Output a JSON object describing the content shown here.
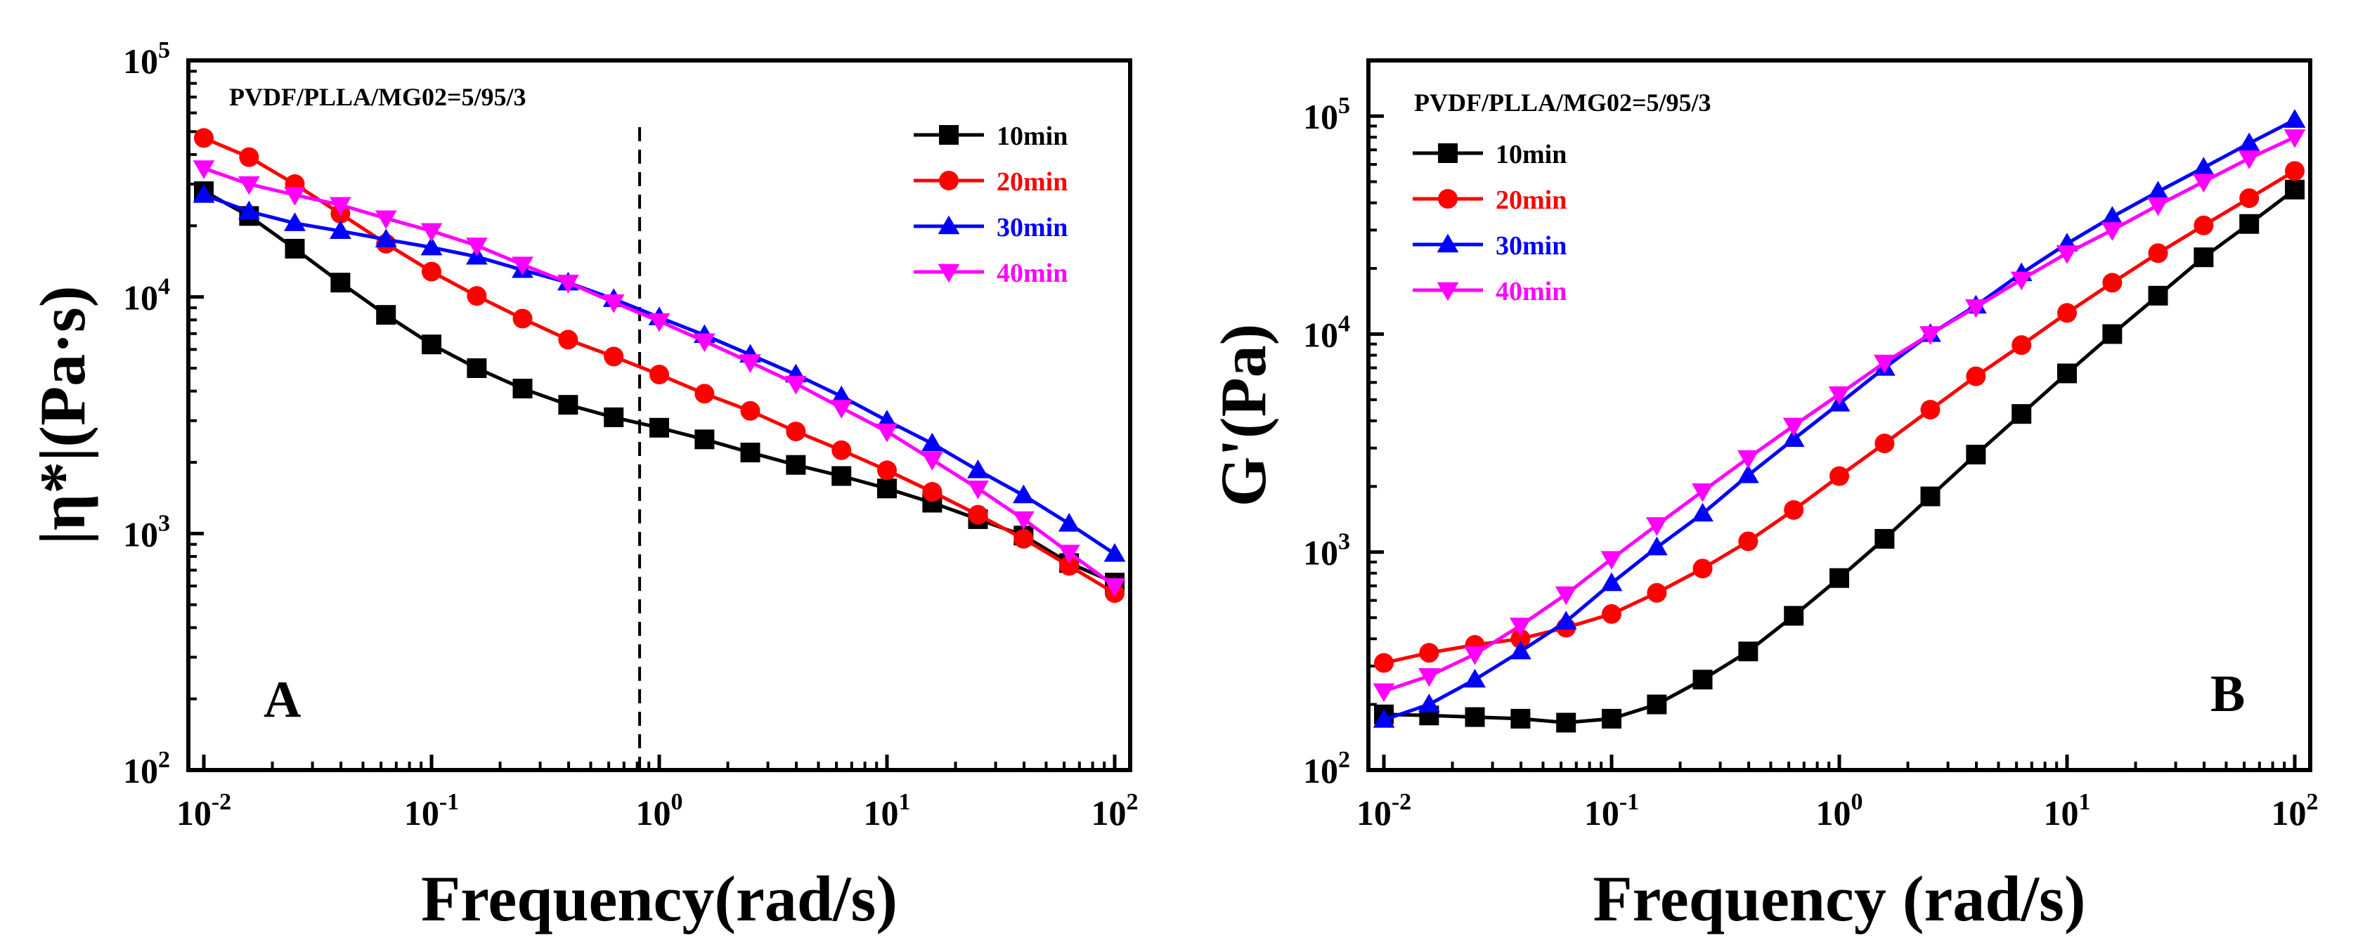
{
  "chart_data": [
    {
      "type": "line",
      "panel_label": "A",
      "annotation": "PVDF/PLLA/MG02=5/95/3",
      "xlabel": "Frequency(rad/s)",
      "ylabel": "|η*|(Pa·s)",
      "xscale": "log",
      "yscale": "log",
      "xlim": [
        0.01,
        100
      ],
      "ylim": [
        100,
        100000
      ],
      "x_ticks": [
        {
          "value": 0.01,
          "base": "10",
          "exp": "-2"
        },
        {
          "value": 0.1,
          "base": "10",
          "exp": "-1"
        },
        {
          "value": 1,
          "base": "10",
          "exp": "0"
        },
        {
          "value": 10,
          "base": "10",
          "exp": "1"
        },
        {
          "value": 100,
          "base": "10",
          "exp": "2"
        }
      ],
      "y_ticks": [
        {
          "value": 100,
          "base": "10",
          "exp": "2"
        },
        {
          "value": 1000,
          "base": "10",
          "exp": "3"
        },
        {
          "value": 10000,
          "base": "10",
          "exp": "4"
        },
        {
          "value": 100000,
          "base": "10",
          "exp": "5"
        }
      ],
      "vline_x": 0.82,
      "legend_position": "top-right",
      "x": [
        0.01,
        0.0158,
        0.0251,
        0.0398,
        0.0631,
        0.1,
        0.158,
        0.251,
        0.398,
        0.631,
        1,
        1.58,
        2.51,
        3.98,
        6.31,
        10,
        15.8,
        25.1,
        39.8,
        63.1,
        100
      ],
      "series": [
        {
          "name": "10min",
          "color": "#000000",
          "marker": "square",
          "values": [
            28000,
            22000,
            16000,
            11500,
            8400,
            6300,
            5000,
            4100,
            3500,
            3100,
            2800,
            2500,
            2200,
            1950,
            1750,
            1550,
            1350,
            1150,
            980,
            750,
            620
          ]
        },
        {
          "name": "20min",
          "color": "#ff0000",
          "marker": "circle",
          "values": [
            47000,
            39000,
            30000,
            22500,
            16800,
            12800,
            10100,
            8100,
            6600,
            5600,
            4700,
            3900,
            3300,
            2700,
            2250,
            1850,
            1500,
            1200,
            950,
            730,
            560
          ]
        },
        {
          "name": "30min",
          "color": "#0000ff",
          "marker": "triangle-up",
          "values": [
            27000,
            23000,
            20500,
            19000,
            17500,
            16200,
            14800,
            13000,
            11500,
            9800,
            8200,
            6900,
            5700,
            4700,
            3800,
            3000,
            2400,
            1850,
            1450,
            1100,
            820
          ]
        },
        {
          "name": "40min",
          "color": "#ff00ff",
          "marker": "triangle-down",
          "values": [
            35000,
            30000,
            27000,
            24500,
            21500,
            19000,
            16500,
            13700,
            11500,
            9500,
            7900,
            6500,
            5300,
            4300,
            3400,
            2700,
            2050,
            1550,
            1150,
            830,
            600
          ]
        }
      ]
    },
    {
      "type": "line",
      "panel_label": "B",
      "annotation": "PVDF/PLLA/MG02=5/95/3",
      "xlabel": "Frequency (rad/s)",
      "ylabel": "G'(Pa)",
      "xscale": "log",
      "yscale": "log",
      "xlim": [
        0.01,
        100
      ],
      "ylim": [
        100,
        180000
      ],
      "x_ticks": [
        {
          "value": 0.01,
          "base": "10",
          "exp": "-2"
        },
        {
          "value": 0.1,
          "base": "10",
          "exp": "-1"
        },
        {
          "value": 1,
          "base": "10",
          "exp": "0"
        },
        {
          "value": 10,
          "base": "10",
          "exp": "1"
        },
        {
          "value": 100,
          "base": "10",
          "exp": "2"
        }
      ],
      "y_ticks": [
        {
          "value": 100,
          "base": "10",
          "exp": "2"
        },
        {
          "value": 1000,
          "base": "10",
          "exp": "3"
        },
        {
          "value": 10000,
          "base": "10",
          "exp": "4"
        },
        {
          "value": 100000,
          "base": "10",
          "exp": "5"
        }
      ],
      "legend_position": "top-left",
      "x": [
        0.01,
        0.0158,
        0.0251,
        0.0398,
        0.0631,
        0.1,
        0.158,
        0.251,
        0.398,
        0.631,
        1,
        1.58,
        2.51,
        3.98,
        6.31,
        10,
        15.8,
        25.1,
        39.8,
        63.1,
        100
      ],
      "series": [
        {
          "name": "10min",
          "color": "#000000",
          "marker": "square",
          "values": [
            180,
            178,
            175,
            172,
            165,
            172,
            200,
            260,
            350,
            510,
            760,
            1150,
            1800,
            2800,
            4300,
            6600,
            10000,
            15000,
            22500,
            32000,
            46000
          ]
        },
        {
          "name": "20min",
          "color": "#ff0000",
          "marker": "circle",
          "values": [
            310,
            345,
            375,
            400,
            450,
            520,
            650,
            840,
            1120,
            1560,
            2230,
            3150,
            4500,
            6400,
            8900,
            12500,
            17200,
            23500,
            31500,
            42000,
            56000
          ]
        },
        {
          "name": "30min",
          "color": "#0000ff",
          "marker": "triangle-up",
          "values": [
            170,
            200,
            260,
            350,
            480,
            720,
            1050,
            1500,
            2250,
            3300,
            4800,
            7000,
            10000,
            13500,
            19000,
            26000,
            34500,
            45000,
            58000,
            75000,
            96000
          ]
        },
        {
          "name": "40min",
          "color": "#ff00ff",
          "marker": "triangle-down",
          "values": [
            230,
            270,
            340,
            460,
            640,
            930,
            1330,
            1900,
            2700,
            3800,
            5300,
            7400,
            10000,
            13300,
            17800,
            23500,
            30000,
            39000,
            50000,
            64000,
            80000
          ]
        }
      ]
    }
  ]
}
